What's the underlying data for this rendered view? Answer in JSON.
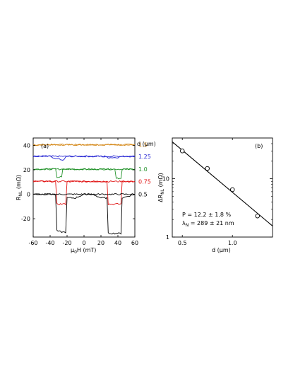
{
  "chart_data": [
    {
      "type": "line",
      "panel_label": "(a)",
      "xlabel": "μ0H (mT)",
      "ylabel": "RNL (mΩ)",
      "xlim": [
        -60,
        60
      ],
      "ylim": [
        -35,
        46
      ],
      "xticks": [
        -60,
        -40,
        -20,
        0,
        20,
        40,
        60
      ],
      "yticks": [
        -20,
        0,
        20,
        40
      ],
      "legend_title": "d (μm)",
      "legend_placement": "right-outside",
      "grid": false,
      "series": [
        {
          "name": "1.5",
          "color": "#d58a1c",
          "baseline": 40.5,
          "up": [
            0,
            0,
            0,
            0,
            0,
            0,
            0,
            0,
            0,
            0
          ],
          "down": [
            0,
            0,
            0,
            0,
            0,
            0,
            0,
            0,
            0,
            0
          ]
        },
        {
          "name": "1.25",
          "color": "#1f1fd2",
          "baseline": 31,
          "up": [
            0,
            0,
            0,
            0,
            -1,
            -1,
            0,
            0,
            0,
            0
          ],
          "down": [
            0,
            0,
            0,
            0,
            -1,
            -1,
            0,
            0,
            0,
            0
          ]
        },
        {
          "name": "1.0",
          "color": "#22922a",
          "baseline": 20.5,
          "up": [
            0,
            0,
            0,
            0,
            -8,
            -6,
            0,
            0,
            0,
            0
          ],
          "down": [
            0,
            0,
            0,
            -6,
            -8,
            0,
            0,
            0,
            0,
            0
          ]
        },
        {
          "name": "0.75",
          "color": "#e01010",
          "baseline": 10.5,
          "up": [
            0,
            0,
            0,
            0,
            -16,
            -18,
            -14,
            0,
            0,
            0
          ],
          "down": [
            0,
            0,
            0,
            -18,
            -16,
            -14,
            0,
            0,
            0,
            0
          ]
        },
        {
          "name": "0.5",
          "color": "#000000",
          "baseline": 0,
          "up": [
            0,
            0,
            0,
            -5,
            -30,
            -30,
            -25,
            0,
            0,
            0
          ],
          "down": [
            0,
            0,
            0,
            -30,
            -30,
            -25,
            -5,
            0,
            0,
            0
          ]
        }
      ],
      "sweep_field_mT": [
        -60,
        -40,
        -32,
        -25,
        -20,
        -10,
        0,
        10,
        20,
        30,
        38,
        45,
        60
      ],
      "sweeps": {
        "1.5": {
          "up": [
            40.5,
            40.5,
            40.5,
            40.5,
            40.5,
            40.5,
            40.5,
            40.5,
            40.5,
            40.5,
            40.5,
            40.5,
            40.5
          ],
          "down": [
            40,
            40.5,
            40.5,
            40.5,
            40.5,
            40.5,
            40.5,
            40.5,
            40.5,
            40.5,
            40.5,
            40.5,
            40
          ]
        },
        "1.25": {
          "up": [
            31,
            31,
            31,
            31,
            31,
            31,
            31,
            31,
            31,
            30,
            30,
            31,
            31
          ],
          "down": [
            31,
            31,
            29,
            28,
            31,
            31,
            31,
            31,
            31,
            31,
            31,
            31,
            31
          ]
        },
        "1.0": {
          "up": [
            20.5,
            20.5,
            20.5,
            20.5,
            20.5,
            20.5,
            20.5,
            20.5,
            20.5,
            20.5,
            13,
            20.5,
            20.5
          ],
          "down": [
            20.5,
            20.5,
            14,
            20.5,
            20.5,
            20.5,
            20.5,
            20.5,
            20.5,
            20.5,
            20.5,
            20.5,
            20.5
          ]
        },
        "0.75": {
          "up": [
            10.5,
            10.5,
            10.5,
            10.5,
            10.5,
            10.5,
            10.5,
            10.5,
            10.5,
            -8,
            -8,
            10.5,
            10.5
          ],
          "down": [
            10.5,
            10.5,
            -8,
            -8,
            10.5,
            10.5,
            10.5,
            10.5,
            10.5,
            10.5,
            10.5,
            10.5,
            10.5
          ]
        },
        "0.5": {
          "up": [
            0,
            0,
            0,
            0,
            0,
            0,
            0,
            0,
            -3,
            -32,
            -32,
            -3,
            0
          ],
          "down": [
            0,
            0,
            -30,
            -31,
            -3,
            -3,
            0,
            0,
            0,
            0,
            0,
            0,
            0
          ]
        }
      }
    },
    {
      "type": "scatter",
      "panel_label": "(b)",
      "xlabel": "d (μm)",
      "ylabel": "ΔRNL (mΩ)",
      "xlim": [
        0.4,
        1.4
      ],
      "ylim": [
        1,
        50
      ],
      "yscale": "log",
      "xticks": [
        0.5,
        1.0
      ],
      "yticks": [
        1,
        10
      ],
      "grid": false,
      "points": {
        "x": [
          0.5,
          0.75,
          1.0,
          1.25
        ],
        "y": [
          30,
          15,
          6.5,
          2.3
        ]
      },
      "fit": {
        "x": [
          0.4,
          1.4
        ],
        "y": [
          43,
          1.55
        ]
      },
      "annotations": [
        "P   = 12.2 ± 1.8 %",
        "λN = 289 ± 21 nm"
      ]
    }
  ],
  "text": {
    "a_label": "(a)",
    "a_xlabel_main": "μ",
    "a_xlabel_sub": "0",
    "a_xlabel_rest": "H (mT)",
    "a_ylabel_main": "R",
    "a_ylabel_sub": "NL",
    "a_ylabel_rest": " (mΩ)",
    "a_legend_title": "d (μm)",
    "b_label": "(b)",
    "b_xlabel": "d (μm)",
    "b_ylabel_main": "ΔR",
    "b_ylabel_sub": "NL",
    "b_ylabel_rest": " (mΩ)",
    "b_ann1": "P   = 12.2 ± 1.8 %",
    "b_ann2_main": "λ",
    "b_ann2_sub": "N",
    "b_ann2_rest": " = 289 ± 21 nm"
  }
}
